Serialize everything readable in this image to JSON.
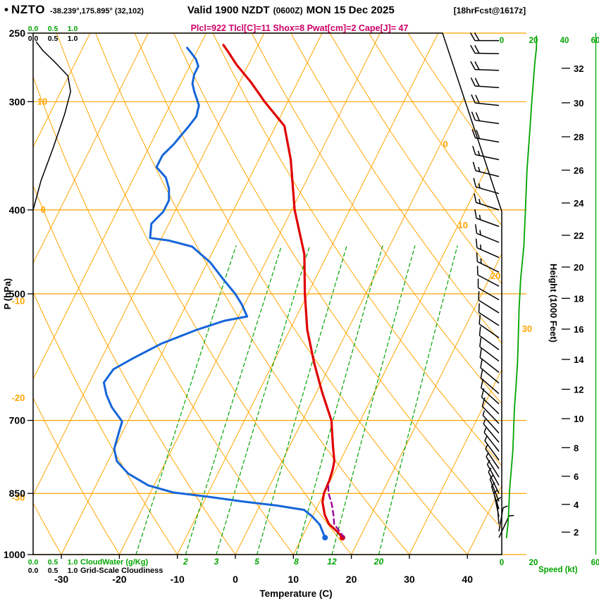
{
  "header": {
    "bullet": "•",
    "station": "NZTO",
    "coords": "-38.239°,175.895° (32,102)",
    "valid": "Valid 1900 NZDT",
    "valid_utc": "(0600Z)",
    "valid_date": "MON 15 Dec 2025",
    "forecast_ref": "[18hrFcst@1617z]",
    "params": "Plcl=922 Tlcl[C]=11 Shox=8 Pwat[cm]=2 Cape[J]= 47"
  },
  "axes": {
    "pressure": {
      "label": "P (hPa)",
      "ticks": [
        250,
        300,
        400,
        500,
        700,
        850,
        1000
      ]
    },
    "temperature": {
      "label": "Temperature (C)",
      "ticks": [
        -30,
        -20,
        -10,
        0,
        10,
        20,
        30,
        40
      ]
    },
    "height": {
      "label": "Height (1000 Feet)",
      "ticks": [
        2,
        4,
        6,
        8,
        10,
        12,
        14,
        16,
        18,
        20,
        22,
        24,
        26,
        28,
        30,
        32
      ]
    },
    "speed": {
      "label": "Speed (kt)",
      "scale_top": [
        "0",
        "20",
        "40",
        "60"
      ],
      "scale_bottom": [
        "0",
        "20",
        "60"
      ]
    },
    "cloud_scales": {
      "values": [
        "0.0",
        "0.5",
        "1.0"
      ],
      "water_label": "CloudWater (g/Kg)",
      "cloudiness_label": "Grid-Scale Cloudiness"
    }
  },
  "grid": {
    "isotherm_labels": [
      {
        "t": 0,
        "p": 336
      },
      {
        "t": 10,
        "p": 417
      },
      {
        "t": 20,
        "p": 477
      },
      {
        "t": 30,
        "p": 549
      }
    ],
    "adiabat_labels": [
      {
        "theta": 10,
        "p": 300,
        "edge": false
      },
      {
        "theta": 0,
        "p": 400,
        "edge": false
      },
      {
        "theta": -10,
        "p": 510,
        "edge": true
      },
      {
        "theta": -20,
        "p": 660,
        "edge": true
      },
      {
        "theta": -30,
        "p": 860,
        "edge": true
      }
    ],
    "mixing_ratio_values": [
      1,
      2,
      3,
      5,
      8,
      12,
      20
    ],
    "mixing_ratio_label_values": [
      2,
      3,
      5,
      8,
      12,
      20
    ]
  },
  "colors": {
    "grid_orange": "#ffa500",
    "green": "#00a400",
    "temp_red": "#e00000",
    "dewpoint_blue": "#1666d9",
    "parcel_purple": "#990099",
    "params_magenta": "#cc0066",
    "black": "#000000"
  },
  "chart_data": {
    "type": "skewt-log-p sounding",
    "pressure_hpa_range": [
      1000,
      250
    ],
    "temperature_axis_range_c": [
      -35,
      45
    ],
    "temperature_profile": [
      [
        956,
        17
      ],
      [
        940,
        15.5
      ],
      [
        922,
        13.5
      ],
      [
        900,
        12
      ],
      [
        870,
        10.5
      ],
      [
        850,
        10
      ],
      [
        820,
        9.8
      ],
      [
        800,
        9.5
      ],
      [
        780,
        9
      ],
      [
        750,
        7.5
      ],
      [
        700,
        5
      ],
      [
        650,
        1
      ],
      [
        600,
        -3
      ],
      [
        550,
        -7
      ],
      [
        500,
        -10.5
      ],
      [
        450,
        -14
      ],
      [
        400,
        -19.5
      ],
      [
        350,
        -24.5
      ],
      [
        320,
        -28.5
      ],
      [
        300,
        -34
      ],
      [
        285,
        -38
      ],
      [
        272,
        -42
      ],
      [
        263,
        -44.5
      ],
      [
        258,
        -46
      ]
    ],
    "dewpoint_profile": [
      [
        956,
        14
      ],
      [
        924,
        12
      ],
      [
        904,
        10
      ],
      [
        888,
        8
      ],
      [
        878,
        3
      ],
      [
        869,
        -3
      ],
      [
        857,
        -10
      ],
      [
        848,
        -16
      ],
      [
        832,
        -21
      ],
      [
        806,
        -25.5
      ],
      [
        780,
        -28.5
      ],
      [
        755,
        -30
      ],
      [
        729,
        -30.5
      ],
      [
        702,
        -31
      ],
      [
        676,
        -34
      ],
      [
        654,
        -36
      ],
      [
        633,
        -37.5
      ],
      [
        611,
        -37
      ],
      [
        593,
        -34.5
      ],
      [
        571,
        -31
      ],
      [
        550,
        -26
      ],
      [
        537,
        -22
      ],
      [
        531,
        -18.5
      ],
      [
        514,
        -20.5
      ],
      [
        500,
        -22.5
      ],
      [
        480,
        -26
      ],
      [
        460,
        -29.5
      ],
      [
        441,
        -34
      ],
      [
        434,
        -38.5
      ],
      [
        431,
        -42
      ],
      [
        415,
        -43
      ],
      [
        402,
        -42
      ],
      [
        390,
        -42
      ],
      [
        378,
        -43
      ],
      [
        367,
        -44.5
      ],
      [
        357,
        -47
      ],
      [
        346,
        -47
      ],
      [
        336,
        -46
      ],
      [
        328,
        -45.5
      ],
      [
        321,
        -45
      ],
      [
        312,
        -44.5
      ],
      [
        303,
        -45
      ],
      [
        292,
        -47
      ],
      [
        286,
        -48
      ],
      [
        279,
        -48.5
      ],
      [
        273,
        -48.5
      ],
      [
        268,
        -49.5
      ],
      [
        263,
        -51
      ],
      [
        260,
        -52
      ]
    ],
    "parcel_profile": [
      [
        956,
        17.3
      ],
      [
        922,
        14.4
      ],
      [
        900,
        13.5
      ],
      [
        875,
        12.3
      ],
      [
        850,
        10.8
      ],
      [
        838,
        10.3
      ],
      [
        828,
        9.9
      ]
    ],
    "wind_barbs": [
      [
        956,
        25,
        3
      ],
      [
        940,
        10,
        3
      ],
      [
        922,
        355,
        4
      ],
      [
        904,
        348,
        4
      ],
      [
        886,
        342,
        4
      ],
      [
        868,
        338,
        5
      ],
      [
        850,
        334,
        5
      ],
      [
        832,
        331,
        5
      ],
      [
        814,
        328,
        6
      ],
      [
        796,
        326,
        6
      ],
      [
        778,
        324,
        6
      ],
      [
        760,
        322,
        7
      ],
      [
        742,
        320,
        7
      ],
      [
        724,
        318,
        7
      ],
      [
        706,
        316,
        8
      ],
      [
        688,
        314,
        8
      ],
      [
        670,
        312,
        8
      ],
      [
        652,
        311,
        9
      ],
      [
        634,
        310,
        9
      ],
      [
        616,
        308,
        9
      ],
      [
        598,
        307,
        10
      ],
      [
        580,
        306,
        10
      ],
      [
        562,
        305,
        10
      ],
      [
        544,
        303,
        11
      ],
      [
        526,
        302,
        11
      ],
      [
        508,
        300,
        12
      ],
      [
        490,
        298,
        12
      ],
      [
        472,
        296,
        13
      ],
      [
        454,
        294,
        13
      ],
      [
        436,
        292,
        14
      ],
      [
        418,
        290,
        14
      ],
      [
        400,
        288,
        15
      ],
      [
        383,
        286,
        16
      ],
      [
        366,
        284,
        16
      ],
      [
        350,
        282,
        17
      ],
      [
        334,
        280,
        18
      ],
      [
        318,
        278,
        18
      ],
      [
        303,
        276,
        19
      ],
      [
        289,
        274,
        20
      ],
      [
        276,
        272,
        20
      ],
      [
        264,
        271,
        21
      ],
      [
        255,
        270,
        22
      ]
    ],
    "wind_speed_profile": [
      [
        956,
        3
      ],
      [
        920,
        4
      ],
      [
        880,
        4.5
      ],
      [
        840,
        5
      ],
      [
        800,
        6
      ],
      [
        760,
        7
      ],
      [
        720,
        7.5
      ],
      [
        680,
        8
      ],
      [
        640,
        9
      ],
      [
        600,
        10
      ],
      [
        560,
        10.5
      ],
      [
        520,
        11
      ],
      [
        480,
        12
      ],
      [
        440,
        14
      ],
      [
        400,
        15
      ],
      [
        360,
        16
      ],
      [
        320,
        18
      ],
      [
        300,
        19
      ],
      [
        285,
        20
      ],
      [
        270,
        21
      ],
      [
        260,
        22
      ],
      [
        252,
        22
      ]
    ],
    "cloudiness_profile": [
      [
        400,
        0.0
      ],
      [
        370,
        0.2
      ],
      [
        340,
        0.5
      ],
      [
        310,
        0.8
      ],
      [
        292,
        0.95
      ],
      [
        280,
        0.88
      ],
      [
        270,
        0.55
      ],
      [
        262,
        0.25
      ],
      [
        256,
        0.08
      ]
    ]
  }
}
